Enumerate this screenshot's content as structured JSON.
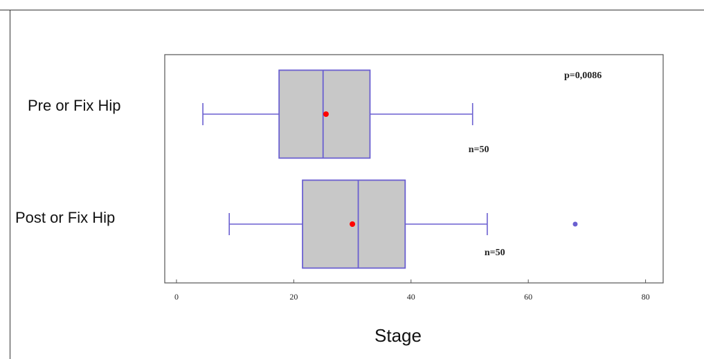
{
  "chart_data": {
    "type": "boxplot",
    "orientation": "horizontal",
    "xlabel": "Stage",
    "xlim": [
      -2,
      83
    ],
    "xticks": [
      0,
      20,
      40,
      60,
      80
    ],
    "grid": false,
    "categories": [
      "Pre or Fix Hip",
      "Post or Fix Hip"
    ],
    "boxes": [
      {
        "label": "Pre or Fix Hip",
        "whisker_low": 4.5,
        "q1": 17.5,
        "median": 25,
        "q3": 33,
        "whisker_high": 50.5,
        "mean": 25.5,
        "outliers": [],
        "n_label": "n=50"
      },
      {
        "label": "Post or Fix Hip",
        "whisker_low": 9,
        "q1": 21.5,
        "median": 31,
        "q3": 39,
        "whisker_high": 53,
        "mean": 30,
        "outliers": [
          68
        ],
        "n_label": "n=50"
      }
    ],
    "annotations": [
      {
        "text": "p=0,0086"
      }
    ],
    "colors": {
      "box_fill": "#c8c8c8",
      "box_edge": "#6a5fd0",
      "mean_marker": "#ff0000",
      "outlier": "#6a5fd0",
      "axis": "#555555"
    }
  }
}
